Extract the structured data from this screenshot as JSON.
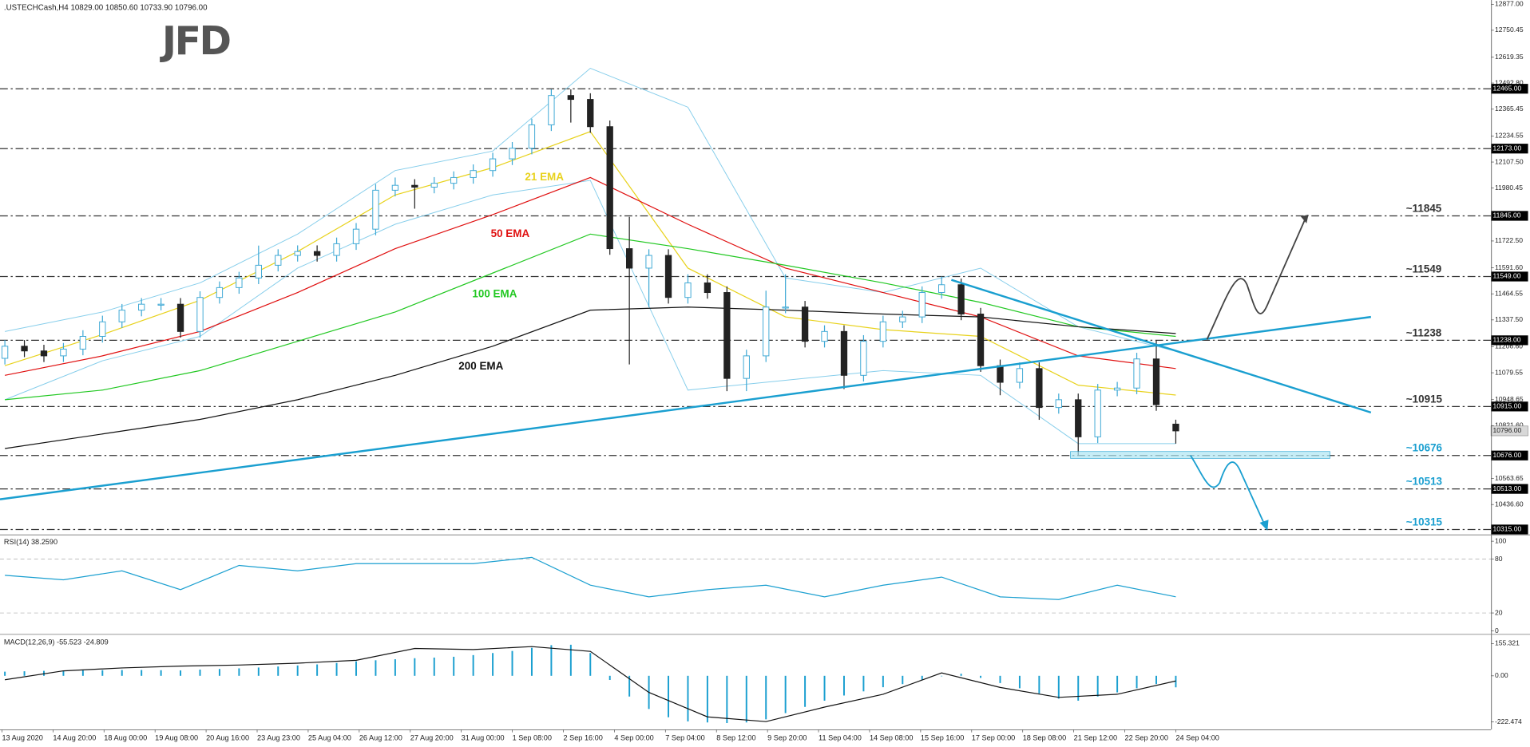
{
  "header": ".USTECHCash,H4  10829.00 10850.60 10733.90 10796.00",
  "logo": "JFD",
  "chart_data": [
    {
      "type": "candlestick",
      "open": [
        11150,
        11209,
        11186,
        11162,
        11195,
        11257,
        11328,
        11385,
        11414,
        11414,
        11281,
        11447,
        11495,
        11542,
        11604,
        11652,
        11671,
        11652,
        11709,
        11780,
        11970,
        11994,
        11985,
        12004,
        12032,
        12066,
        12123,
        12175,
        12289,
        12432,
        12413,
        12280,
        11685,
        11590,
        11652,
        11447,
        11518,
        11471,
        11052,
        11162,
        11400,
        11400,
        11233,
        11281,
        11067,
        11233,
        11328,
        11352,
        11471,
        11509,
        11366,
        11114,
        11033,
        11100,
        10910,
        10948,
        10767,
        10995,
        11005,
        11147,
        10829
      ],
      "high": [
        11239,
        11239,
        11216,
        11225,
        11287,
        11358,
        11415,
        11444,
        11444,
        11444,
        11477,
        11525,
        11572,
        11700,
        11682,
        11701,
        11701,
        11739,
        11810,
        12000,
        12032,
        12024,
        12034,
        12062,
        12096,
        12153,
        12205,
        12319,
        12462,
        12462,
        12443,
        12310,
        11840,
        11682,
        11682,
        11560,
        11560,
        11501,
        11192,
        11480,
        11560,
        11430,
        11311,
        11311,
        11263,
        11358,
        11382,
        11501,
        11549,
        11539,
        11396,
        11144,
        11130,
        11130,
        10978,
        10978,
        11025,
        11035,
        11177,
        11238,
        10850.6
      ],
      "low": [
        11120,
        11156,
        11132,
        11132,
        11165,
        11227,
        11298,
        11355,
        11384,
        11251,
        11251,
        11417,
        11465,
        11512,
        11574,
        11622,
        11622,
        11622,
        11679,
        11750,
        11940,
        11880,
        11955,
        11974,
        12002,
        12036,
        12093,
        12145,
        12259,
        12300,
        12250,
        11655,
        11120,
        11400,
        11417,
        11417,
        11441,
        10990,
        10990,
        11132,
        11370,
        11203,
        11203,
        11000,
        11037,
        11203,
        11298,
        11322,
        11441,
        11336,
        11084,
        10970,
        11003,
        10850,
        10880,
        10676,
        10737,
        10965,
        10975,
        10894,
        10733.9
      ],
      "close": [
        11209,
        11186,
        11162,
        11195,
        11257,
        11328,
        11385,
        11414,
        11414,
        11281,
        11447,
        11495,
        11542,
        11604,
        11652,
        11671,
        11652,
        11709,
        11780,
        11970,
        11994,
        11985,
        12004,
        12032,
        12066,
        12123,
        12175,
        12289,
        12432,
        12413,
        12280,
        11685,
        11590,
        11652,
        11447,
        11518,
        11471,
        11052,
        11162,
        11400,
        11400,
        11233,
        11281,
        11067,
        11233,
        11328,
        11352,
        11471,
        11509,
        11366,
        11114,
        11033,
        11100,
        10910,
        10948,
        10767,
        10995,
        11005,
        11147,
        10924,
        10796
      ],
      "up_color": "#3fa9d5",
      "down_color": "#222222",
      "ylim": [
        10291,
        12898
      ],
      "yticks": [
        {
          "value": 12877,
          "label": "12877.00"
        },
        {
          "value": 12750.45,
          "label": "12750.45"
        },
        {
          "value": 12619.35,
          "label": "12619.35"
        },
        {
          "value": 12492.8,
          "label": "12492.80"
        },
        {
          "value": 12365.45,
          "label": "12365.45"
        },
        {
          "value": 12234.55,
          "label": "12234.55"
        },
        {
          "value": 12107.5,
          "label": "12107.50"
        },
        {
          "value": 11980.45,
          "label": "11980.45"
        },
        {
          "value": 11722.5,
          "label": "11722.50"
        },
        {
          "value": 11591.6,
          "label": "11591.60"
        },
        {
          "value": 11464.55,
          "label": "11464.55"
        },
        {
          "value": 11337.5,
          "label": "11337.50"
        },
        {
          "value": 11206.6,
          "label": "11206.60"
        },
        {
          "value": 11079.55,
          "label": "11079.55"
        },
        {
          "value": 10948.65,
          "label": "10948.65"
        },
        {
          "value": 10821.6,
          "label": "10821.60"
        },
        {
          "value": 10563.65,
          "label": "10563.65"
        },
        {
          "value": 10436.6,
          "label": "10436.60"
        }
      ],
      "levels": [
        {
          "value": 12465,
          "label": "12465.00"
        },
        {
          "value": 12173,
          "label": "12173.00"
        },
        {
          "value": 11845,
          "label": "11845.00",
          "note": "~11845",
          "note_color": "#333333"
        },
        {
          "value": 11549,
          "label": "11549.00",
          "note": "~11549",
          "note_color": "#333333"
        },
        {
          "value": 11238,
          "label": "11238.00",
          "note": "~11238",
          "note_color": "#333333"
        },
        {
          "value": 10915,
          "label": "10915.00",
          "note": "~10915",
          "note_color": "#333333"
        },
        {
          "value": 10676,
          "label": "10676.00",
          "note": "~10676",
          "note_color": "#1a9fd0"
        },
        {
          "value": 10513,
          "label": "10513.00",
          "note": "~10513",
          "note_color": "#1a9fd0"
        },
        {
          "value": 10315,
          "label": "10315.00",
          "note": "~10315",
          "note_color": "#1a9fd0"
        }
      ],
      "last_price": {
        "value": 10796,
        "label": "10796.00"
      },
      "ema_x": [
        0,
        5,
        10,
        15,
        20,
        25,
        30,
        35,
        40,
        45,
        50,
        55,
        60
      ],
      "series": [
        {
          "name": "21 EMA",
          "color": "#e8d21c",
          "values": [
            11114,
            11266,
            11433,
            11671,
            11947,
            12080,
            12256,
            11590,
            11352,
            11290,
            11257,
            11019,
            10971
          ]
        },
        {
          "name": "50 EMA",
          "color": "#e01010",
          "values": [
            11067,
            11162,
            11281,
            11471,
            11685,
            11851,
            12032,
            11804,
            11590,
            11471,
            11352,
            11162,
            11100
          ]
        },
        {
          "name": "100 EMA",
          "color": "#22c822",
          "values": [
            10948,
            10995,
            11090,
            11233,
            11376,
            11566,
            11756,
            11685,
            11604,
            11518,
            11423,
            11304,
            11257
          ]
        },
        {
          "name": "200 EMA",
          "color": "#111111",
          "values": [
            10710,
            10781,
            10852,
            10948,
            11067,
            11209,
            11385,
            11400,
            11385,
            11366,
            11352,
            11304,
            11271
          ]
        }
      ],
      "bands": {
        "color": "#87ceeb",
        "upper": [
          11281,
          11376,
          11518,
          11756,
          12066,
          12161,
          12565,
          12375,
          11542,
          11471,
          11590,
          11304,
          11185
        ],
        "lower": [
          10948,
          11138,
          11257,
          11590,
          11804,
          11947,
          12018,
          10995,
          11043,
          11090,
          11067,
          10734,
          10734
        ]
      },
      "time_labels": [
        "13 Aug 2020",
        "14 Aug 20:00",
        "18 Aug 00:00",
        "19 Aug 08:00",
        "20 Aug 16:00",
        "23 Aug 23:00",
        "25 Aug 04:00",
        "26 Aug 12:00",
        "27 Aug 20:00",
        "31 Aug 00:00",
        "1 Sep 08:00",
        "2 Sep 16:00",
        "4 Sep 00:00",
        "7 Sep 04:00",
        "8 Sep 12:00",
        "9 Sep 20:00",
        "11 Sep 04:00",
        "14 Sep 08:00",
        "15 Sep 16:00",
        "17 Sep 00:00",
        "18 Sep 08:00",
        "21 Sep 12:00",
        "22 Sep 20:00",
        "24 Sep 04:00"
      ]
    },
    {
      "type": "line",
      "title": "RSI(14) 38.2590",
      "x": [
        0,
        3,
        6,
        9,
        12,
        15,
        18,
        21,
        24,
        27,
        30,
        33,
        36,
        39,
        42,
        45,
        48,
        51,
        54,
        57,
        60
      ],
      "series": [
        {
          "color": "#1a9fd0",
          "values": [
            62,
            57,
            67,
            46,
            73,
            67,
            75,
            75,
            75,
            82,
            51,
            38,
            46,
            51,
            38,
            51,
            60,
            38,
            35,
            51,
            38
          ]
        }
      ],
      "ylim": [
        -3.3,
        106.5
      ],
      "yticks": [
        100,
        80,
        20,
        0
      ]
    },
    {
      "type": "macd",
      "title": "MACD(12,26,9) -55.523 -24.809",
      "histogram": {
        "color": "#1a9fd0",
        "values": [
          20,
          22,
          24,
          25,
          26,
          27,
          28,
          28,
          27,
          26,
          30,
          33,
          36,
          40,
          45,
          50,
          55,
          62,
          70,
          75,
          80,
          85,
          88,
          92,
          100,
          110,
          120,
          135,
          148,
          150,
          110,
          -20,
          -100,
          -160,
          -200,
          -220,
          -225,
          -228,
          -225,
          -210,
          -180,
          -150,
          -120,
          -95,
          -75,
          -55,
          -40,
          -20,
          0,
          10,
          -10,
          -35,
          -60,
          -85,
          -110,
          -120,
          -100,
          -80,
          -60,
          -40,
          -55.523
        ]
      },
      "signal": {
        "color": "#111111",
        "x": [
          0,
          3,
          6,
          9,
          12,
          15,
          18,
          21,
          24,
          27,
          30,
          33,
          36,
          39,
          42,
          45,
          48,
          51,
          54,
          57,
          60
        ],
        "values": [
          -19,
          24,
          38,
          47,
          52,
          61,
          75,
          132,
          127,
          141,
          118,
          -80,
          -198,
          -221,
          -151,
          -89,
          14,
          -56,
          -104,
          -89,
          -24.809
        ]
      },
      "ylim": [
        -258.8,
        197.7
      ],
      "yticks": [
        155.321,
        {
          "value": 0,
          "label": "0.00"
        },
        -222.474
      ]
    }
  ]
}
